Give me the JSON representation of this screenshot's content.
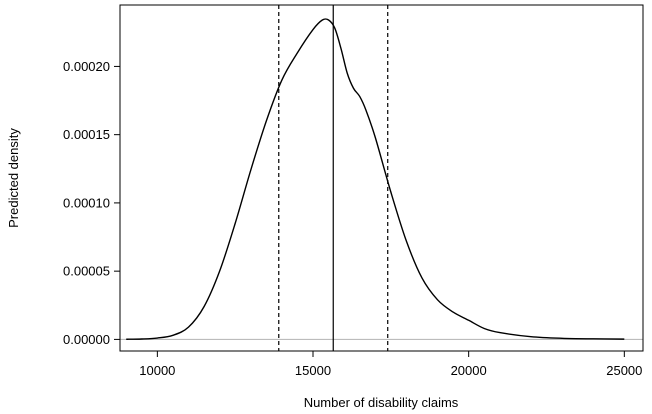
{
  "chart_data": {
    "type": "line",
    "title": "",
    "xlabel": "Number of disability claims",
    "ylabel": "Predicted density",
    "xlim": [
      8800,
      25600
    ],
    "ylim": [
      -8.5e-06,
      0.000245
    ],
    "x_ticks": [
      10000,
      15000,
      20000,
      25000
    ],
    "x_tick_labels": [
      "10000",
      "15000",
      "20000",
      "25000"
    ],
    "y_ticks": [
      0,
      5e-05,
      0.0001,
      0.00015,
      0.0002
    ],
    "y_tick_labels": [
      "0.00000",
      "0.00005",
      "0.00010",
      "0.00015",
      "0.00020"
    ],
    "grid": false,
    "baseline": 0,
    "vertical_lines": [
      {
        "x": 13900,
        "style": "dashed"
      },
      {
        "x": 15650,
        "style": "solid"
      },
      {
        "x": 17400,
        "style": "dashed"
      }
    ],
    "series": [
      {
        "x": [
          9000,
          9500,
          10000,
          10500,
          11000,
          11500,
          12000,
          12500,
          13000,
          13500,
          14000,
          14500,
          15000,
          15300,
          15500,
          15700,
          15900,
          16100,
          16300,
          16500,
          16700,
          17000,
          17500,
          18000,
          18500,
          19000,
          19500,
          20000,
          20500,
          21000,
          22000,
          23000,
          24000,
          25000
        ],
        "values": [
          1e-07,
          3e-07,
          1e-06,
          3e-06,
          9e-06,
          2.4e-05,
          5e-05,
          8.5e-05,
          0.000124,
          0.00016,
          0.00019,
          0.00021,
          0.000227,
          0.000234,
          0.000234,
          0.000228,
          0.000213,
          0.000195,
          0.000184,
          0.000178,
          0.000168,
          0.000148,
          0.000108,
          7.2e-05,
          4.5e-05,
          2.9e-05,
          2e-05,
          1.4e-05,
          8e-06,
          5e-06,
          2e-06,
          8e-07,
          4e-07,
          2e-07
        ]
      }
    ]
  }
}
